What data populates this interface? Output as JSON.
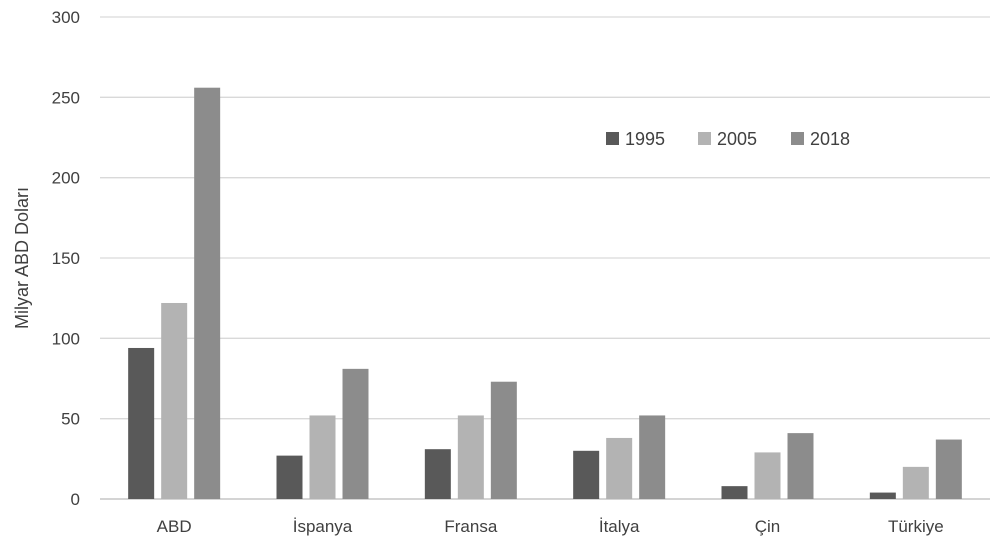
{
  "chart_data": {
    "type": "bar",
    "title": "",
    "xlabel": "",
    "ylabel": "Milyar ABD Doları",
    "ylim": [
      0,
      300
    ],
    "yticks": [
      0,
      50,
      100,
      150,
      200,
      250,
      300
    ],
    "grid": true,
    "legend_position": "top-right",
    "categories": [
      "ABD",
      "İspanya",
      "Fransa",
      "İtalya",
      "Çin",
      "Türkiye"
    ],
    "series": [
      {
        "name": "1995",
        "color": "#595959",
        "values": [
          94,
          27,
          31,
          30,
          8,
          4
        ]
      },
      {
        "name": "2005",
        "color": "#b3b3b3",
        "values": [
          122,
          52,
          52,
          38,
          29,
          20
        ]
      },
      {
        "name": "2018",
        "color": "#8c8c8c",
        "values": [
          256,
          81,
          73,
          52,
          41,
          37
        ]
      }
    ]
  }
}
